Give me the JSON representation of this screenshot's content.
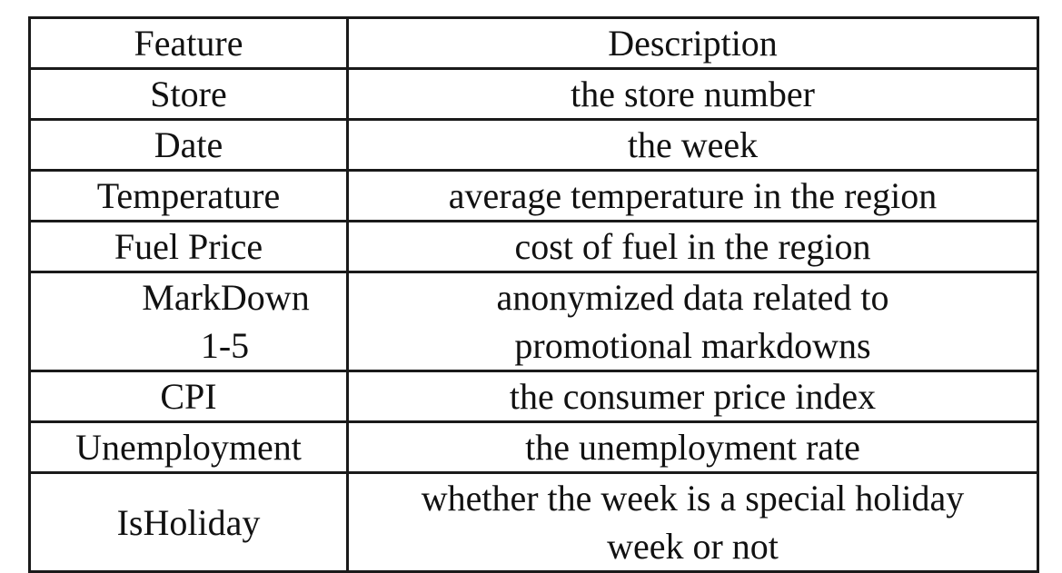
{
  "table": {
    "headers": {
      "feature": "Feature",
      "description": "Description"
    },
    "rows": [
      {
        "feature": "Store",
        "description": "the store number"
      },
      {
        "feature": "Date",
        "description": "the week"
      },
      {
        "feature": "Temperature",
        "description": "average temperature in the region"
      },
      {
        "feature": "Fuel Price",
        "description": "cost of fuel in the region"
      },
      {
        "feature_lines": [
          "MarkDown",
          "1-5"
        ],
        "description_lines": [
          "anonymized data related to",
          "promotional markdowns"
        ]
      },
      {
        "feature": "CPI",
        "description": "the consumer price index"
      },
      {
        "feature": "Unemployment",
        "description": "the unemployment rate"
      },
      {
        "feature": "IsHoliday",
        "description_lines": [
          "whether the week is a special holiday",
          "week or not"
        ]
      }
    ]
  }
}
